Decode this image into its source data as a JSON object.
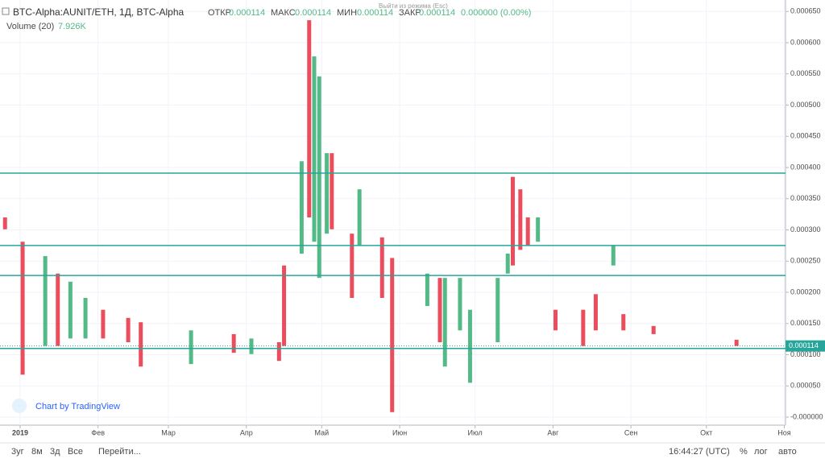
{
  "header": {
    "symbol": "BTC-Alpha:AUNIT/ETH, 1Д, BTC-Alpha",
    "open_label": "ОТКР",
    "open": "0.000114",
    "high_label": "МАКС",
    "high": "0.000114",
    "low_label": "МИН",
    "low": "0.000114",
    "close_label": "ЗАКР",
    "close": "0.000114",
    "change": "0.000000 (0.00%)",
    "volume_label": "Volume (20)",
    "volume": "7.926K",
    "exit_hint": "Выйти из режима (Esc)",
    "branding": "Chart by TradingView"
  },
  "chart_data": {
    "type": "candlestick",
    "x": [
      -6,
      1,
      10,
      15,
      20,
      26,
      33,
      43,
      48,
      68,
      85,
      92,
      103,
      105,
      112,
      115,
      117,
      119,
      122,
      124,
      132,
      135,
      144,
      148,
      162,
      167,
      169,
      175,
      179,
      190,
      194,
      196,
      199,
      202,
      206,
      213,
      224,
      229,
      236,
      240,
      252,
      285
    ],
    "open": [
      0.00032,
      0.000281,
      0.000114,
      0.00023,
      0.000126,
      0.000126,
      0.000172,
      0.000159,
      0.000152,
      8.5e-05,
      0.000133,
      0.000101,
      0.00012,
      0.000243,
      0.000262,
      0.000636,
      0.000281,
      0.000223,
      0.000294,
      0.000423,
      0.000294,
      0.000275,
      0.000288,
      0.000255,
      0.000178,
      0.000223,
      8.1e-05,
      0.000139,
      5.5e-05,
      0.00012,
      0.00023,
      0.000385,
      0.000365,
      0.00032,
      0.000281,
      0.000172,
      0.000172,
      0.000197,
      0.000243,
      0.000165,
      0.000146,
      0.000124
    ],
    "close": [
      0.000301,
      6.8e-05,
      0.000258,
      0.000114,
      0.000217,
      0.000191,
      0.000126,
      0.00012,
      8.1e-05,
      0.000139,
      0.000103,
      0.000126,
      9e-05,
      0.000114,
      0.00041,
      0.00032,
      0.000578,
      0.000546,
      0.000423,
      0.000301,
      0.000191,
      0.000365,
      0.000191,
      8e-06,
      0.00023,
      0.00012,
      0.000223,
      0.000223,
      0.000172,
      0.000223,
      0.000262,
      0.000243,
      0.000268,
      0.000275,
      0.00032,
      0.000139,
      0.000114,
      0.000139,
      0.000275,
      0.000139,
      0.000133,
      0.000114
    ],
    "up_color": "#53b987",
    "down_color": "#eb4d5c",
    "xlim": [
      -8,
      304.5
    ],
    "xticks": [
      {
        "value": 0,
        "label": "2019"
      },
      {
        "value": 31,
        "label": "Фев"
      },
      {
        "value": 59,
        "label": "Мар"
      },
      {
        "value": 90,
        "label": "Апр"
      },
      {
        "value": 120,
        "label": "Май"
      },
      {
        "value": 151,
        "label": "Июн"
      },
      {
        "value": 181,
        "label": "Июл"
      },
      {
        "value": 212,
        "label": "Авг"
      },
      {
        "value": 243,
        "label": "Сен"
      },
      {
        "value": 273,
        "label": "Окт"
      },
      {
        "value": 304,
        "label": "Ноя"
      }
    ],
    "ylim": [
      -1.29e-05,
      0.0006684
    ],
    "yticks": [
      {
        "value": 0,
        "label": "-0.000000"
      },
      {
        "value": 5e-05,
        "label": "0.000050"
      },
      {
        "value": 0.0001,
        "label": "0.000100"
      },
      {
        "value": 0.00015,
        "label": "0.000150"
      },
      {
        "value": 0.0002,
        "label": "0.000200"
      },
      {
        "value": 0.00025,
        "label": "0.000250"
      },
      {
        "value": 0.0003,
        "label": "0.000300"
      },
      {
        "value": 0.00035,
        "label": "0.000350"
      },
      {
        "value": 0.0004,
        "label": "0.000400"
      },
      {
        "value": 0.00045,
        "label": "0.000450"
      },
      {
        "value": 0.0005,
        "label": "0.000500"
      },
      {
        "value": 0.00055,
        "label": "0.000550"
      },
      {
        "value": 0.0006,
        "label": "0.000600"
      },
      {
        "value": 0.00065,
        "label": "0.000650"
      }
    ],
    "levels": [
      0.000391,
      0.000275,
      0.000227,
      0.00011
    ],
    "level_color": "#26a69a",
    "last_price": {
      "value": 0.000114,
      "label": "0.000114"
    },
    "grid": true
  },
  "toolbar": {
    "ranges": [
      "3уг",
      "8м",
      "3д",
      "Все"
    ],
    "goto": "Перейти...",
    "clock": "16:44:27 (UTC)",
    "percent": "%",
    "log": "лог",
    "auto": "авто"
  }
}
